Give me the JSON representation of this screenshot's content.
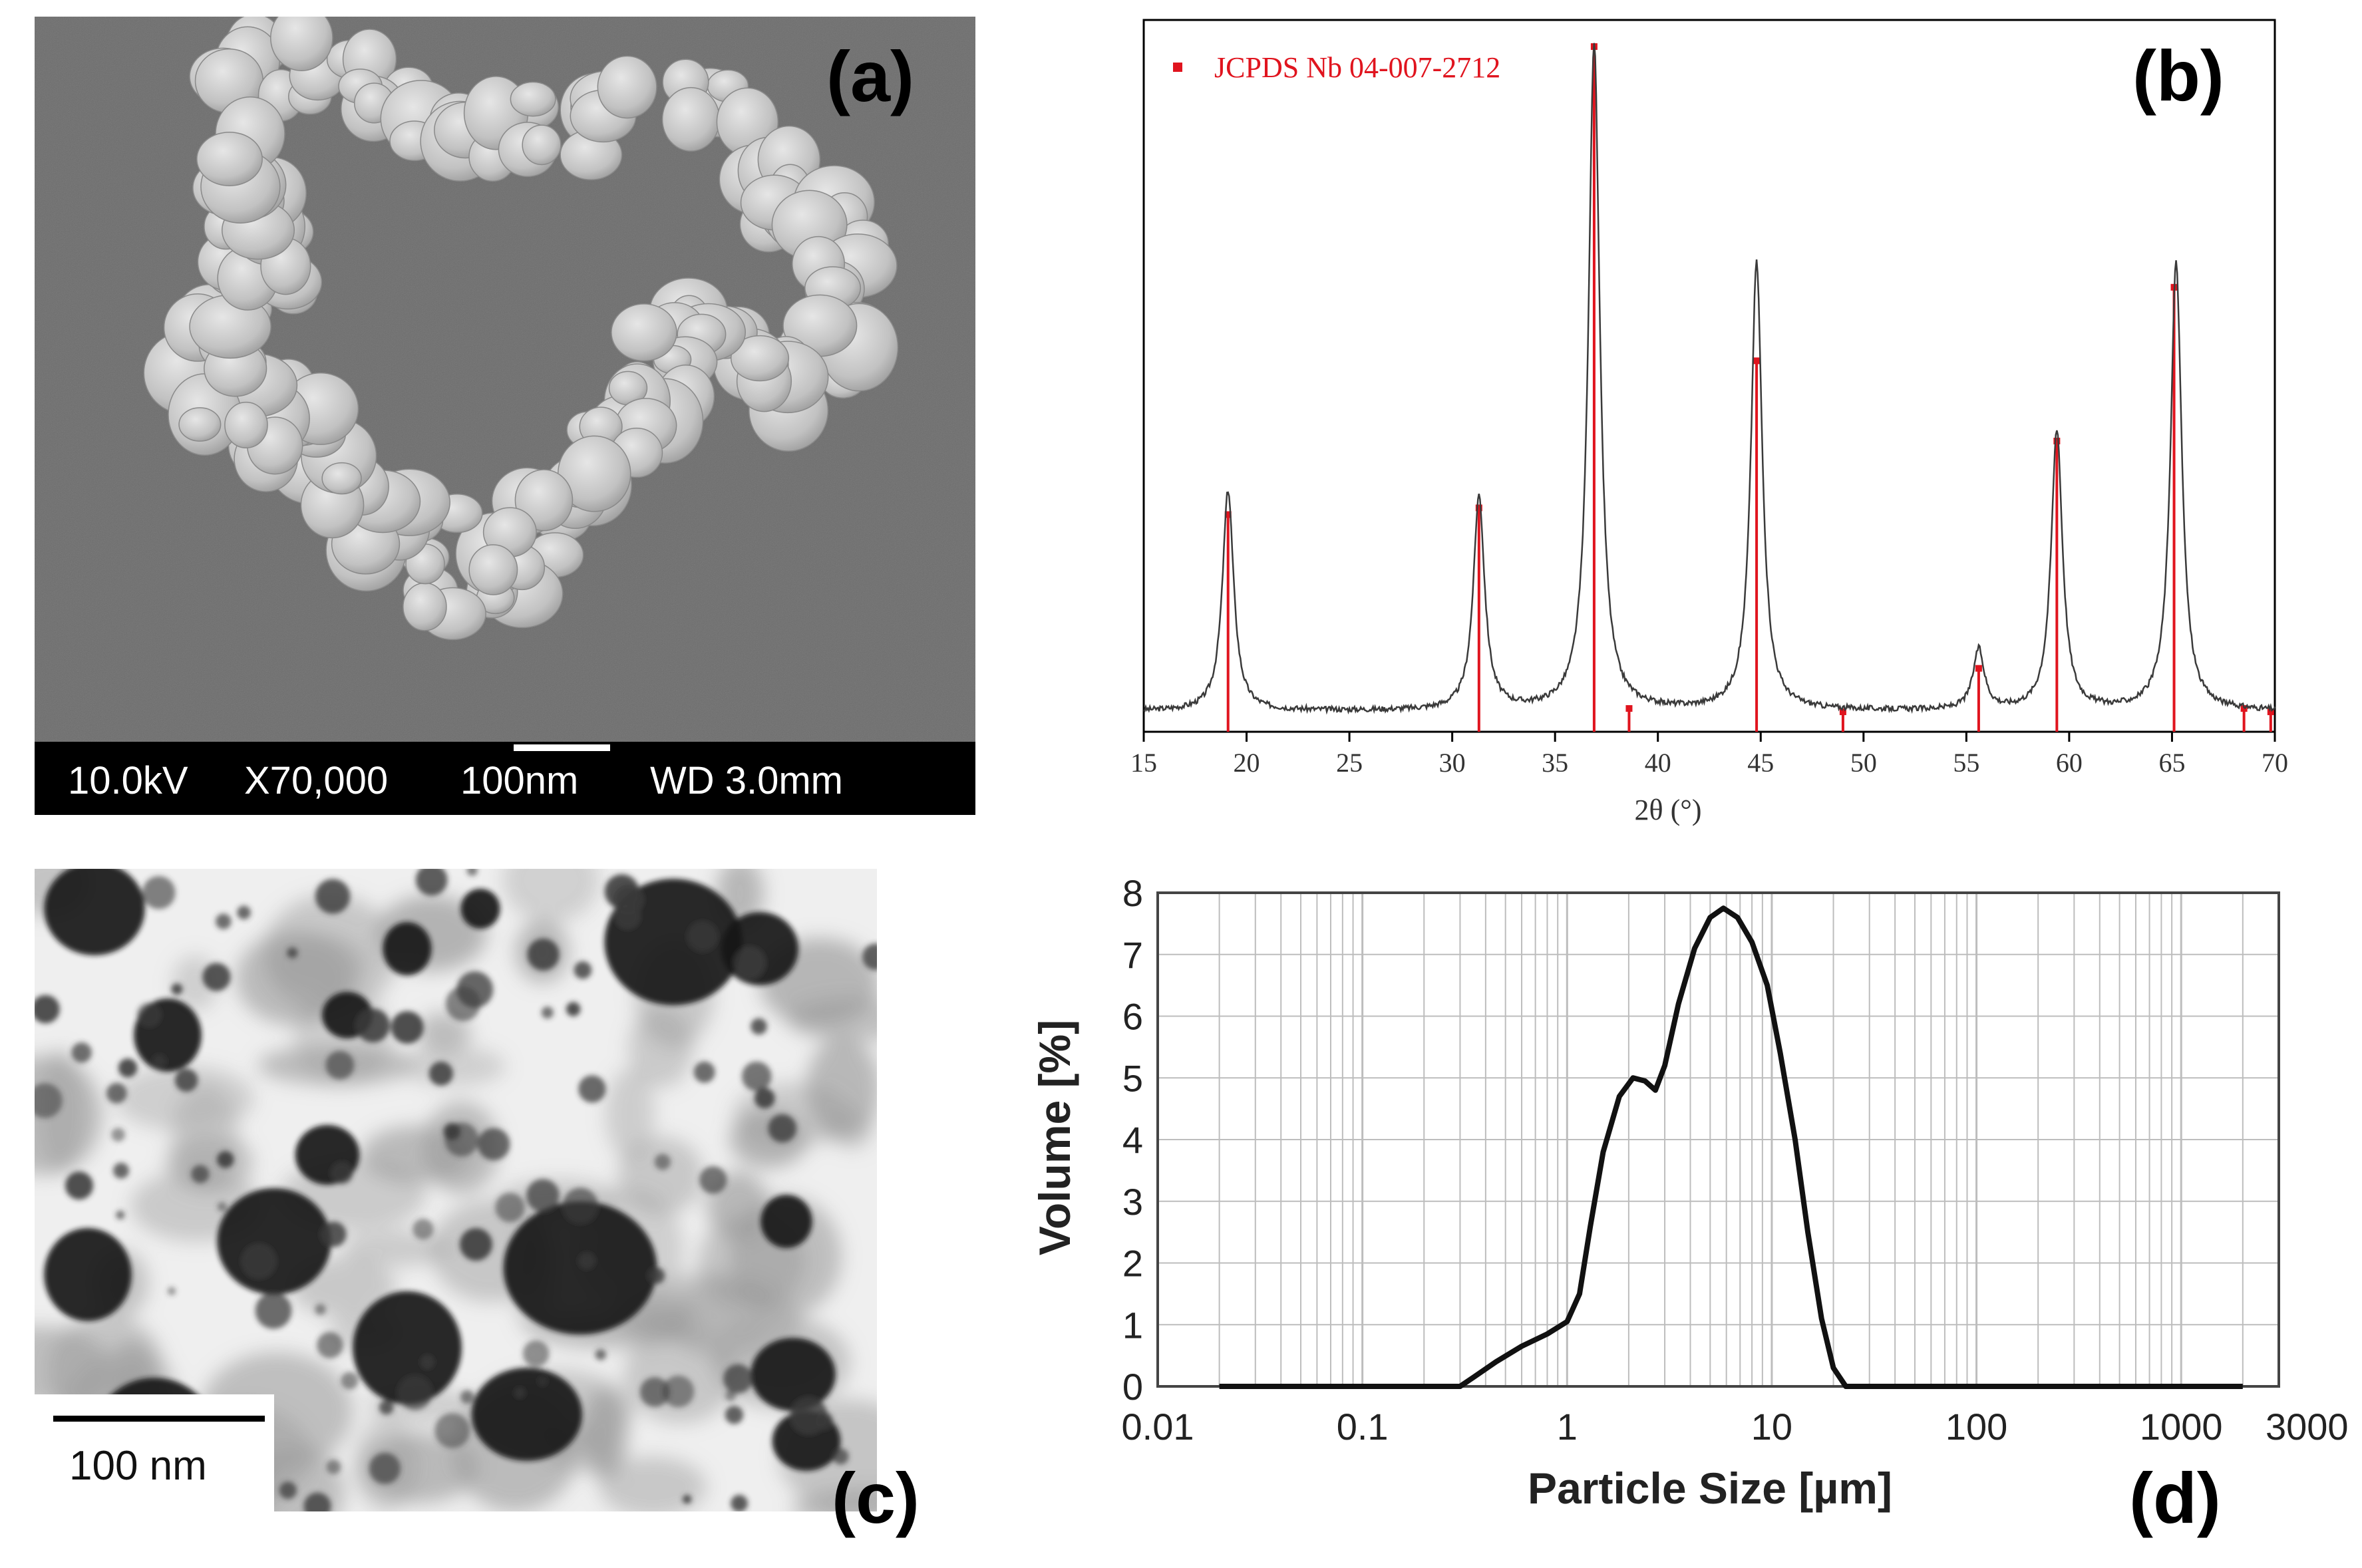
{
  "figure": {
    "panels": [
      {
        "label": "(a)",
        "type": "sem-micrograph",
        "info_bar": {
          "voltage": "10.0kV",
          "magnification": "X70,000",
          "scale": "100nm",
          "working_distance": "WD 3.0mm"
        }
      },
      {
        "label": "(b)",
        "type": "xrd-pattern"
      },
      {
        "label": "(c)",
        "type": "tem-micrograph",
        "scale_label": "100 nm"
      },
      {
        "label": "(d)",
        "type": "particle-size-distribution"
      }
    ]
  },
  "colors": {
    "reference_red": "#e0141e",
    "sem_background": "#6d6d6d",
    "sem_particles": "#c9c9c9",
    "tem_particles": "#1a1a1a",
    "grid": "#bdbdbd"
  },
  "chart_data": [
    {
      "panel": "(b)",
      "type": "line",
      "title": "",
      "xlabel": "2θ (°)",
      "ylabel": "",
      "xlim": [
        15,
        70
      ],
      "ylim": [
        0,
        100
      ],
      "x_ticks": [
        15,
        20,
        25,
        30,
        35,
        40,
        45,
        50,
        55,
        60,
        65,
        70
      ],
      "grid": false,
      "legend": {
        "position": "top-left",
        "entries": [
          {
            "name": "JCPDS Nb 04-007-2712",
            "color": "#e0141e",
            "marker": "square"
          }
        ]
      },
      "peaks": [
        {
          "x": 19.1,
          "y": 33
        },
        {
          "x": 31.3,
          "y": 32
        },
        {
          "x": 36.9,
          "y": 100
        },
        {
          "x": 44.8,
          "y": 67
        },
        {
          "x": 55.6,
          "y": 9
        },
        {
          "x": 59.4,
          "y": 42
        },
        {
          "x": 65.2,
          "y": 67
        }
      ],
      "series": [
        {
          "name": "JCPDS Nb 04-007-2712",
          "style": "stick",
          "points": [
            {
              "x": 19.1,
              "y": 30
            },
            {
              "x": 31.3,
              "y": 31
            },
            {
              "x": 36.9,
              "y": 100
            },
            {
              "x": 38.6,
              "y": 1
            },
            {
              "x": 44.8,
              "y": 53
            },
            {
              "x": 49.0,
              "y": 0.5
            },
            {
              "x": 55.6,
              "y": 7
            },
            {
              "x": 59.4,
              "y": 41
            },
            {
              "x": 65.1,
              "y": 64
            },
            {
              "x": 68.5,
              "y": 1
            },
            {
              "x": 69.8,
              "y": 0.5
            }
          ]
        }
      ]
    },
    {
      "panel": "(d)",
      "type": "line",
      "title": "",
      "xlabel": "Particle Size [µm]",
      "ylabel": "Volume [%]",
      "x_scale": "log",
      "xlim": [
        0.01,
        3000
      ],
      "ylim": [
        0,
        8
      ],
      "x_ticks": [
        0.01,
        0.1,
        1,
        10,
        100,
        1000,
        3000
      ],
      "x_tick_labels": [
        "0.01",
        "0.1",
        "1",
        "10",
        "100",
        "1000",
        "3000"
      ],
      "y_ticks": [
        0,
        1,
        2,
        3,
        4,
        5,
        6,
        7,
        8
      ],
      "grid": true,
      "legend": null,
      "series": [
        {
          "name": "",
          "points": [
            {
              "x": 0.02,
              "y": 0
            },
            {
              "x": 0.3,
              "y": 0
            },
            {
              "x": 0.35,
              "y": 0.15
            },
            {
              "x": 0.45,
              "y": 0.4
            },
            {
              "x": 0.6,
              "y": 0.65
            },
            {
              "x": 0.8,
              "y": 0.85
            },
            {
              "x": 1.0,
              "y": 1.05
            },
            {
              "x": 1.15,
              "y": 1.5
            },
            {
              "x": 1.3,
              "y": 2.6
            },
            {
              "x": 1.5,
              "y": 3.8
            },
            {
              "x": 1.8,
              "y": 4.7
            },
            {
              "x": 2.1,
              "y": 5.0
            },
            {
              "x": 2.4,
              "y": 4.95
            },
            {
              "x": 2.7,
              "y": 4.8
            },
            {
              "x": 3.0,
              "y": 5.2
            },
            {
              "x": 3.5,
              "y": 6.2
            },
            {
              "x": 4.2,
              "y": 7.1
            },
            {
              "x": 5.0,
              "y": 7.6
            },
            {
              "x": 5.8,
              "y": 7.75
            },
            {
              "x": 6.8,
              "y": 7.6
            },
            {
              "x": 8.0,
              "y": 7.2
            },
            {
              "x": 9.5,
              "y": 6.5
            },
            {
              "x": 11.0,
              "y": 5.4
            },
            {
              "x": 13.0,
              "y": 4.0
            },
            {
              "x": 15.0,
              "y": 2.5
            },
            {
              "x": 17.5,
              "y": 1.1
            },
            {
              "x": 20.0,
              "y": 0.3
            },
            {
              "x": 23.0,
              "y": 0
            },
            {
              "x": 2000,
              "y": 0
            }
          ]
        }
      ]
    }
  ]
}
